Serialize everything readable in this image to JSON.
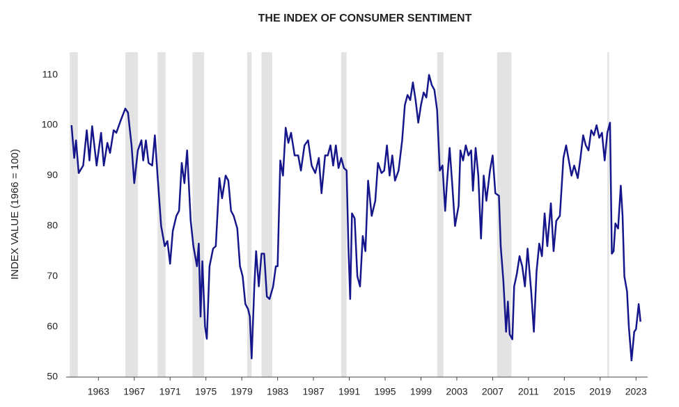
{
  "chart_data": {
    "type": "line",
    "title": "THE INDEX OF CONSUMER SENTIMENT",
    "y_label": "INDEX VALUE (1966 = 100)",
    "x": [
      1960.0,
      1960.3,
      1960.5,
      1960.8,
      1961.3,
      1961.7,
      1962.0,
      1962.3,
      1962.8,
      1963.3,
      1963.6,
      1964.0,
      1964.3,
      1964.7,
      1965.0,
      1965.5,
      1966.0,
      1966.3,
      1966.7,
      1967.0,
      1967.4,
      1967.8,
      1968.0,
      1968.3,
      1968.6,
      1969.0,
      1969.3,
      1969.6,
      1970.0,
      1970.4,
      1970.7,
      1971.0,
      1971.3,
      1971.7,
      1972.0,
      1972.3,
      1972.6,
      1972.9,
      1973.3,
      1973.6,
      1974.0,
      1974.2,
      1974.4,
      1974.6,
      1974.9,
      1975.1,
      1975.4,
      1975.8,
      1976.1,
      1976.5,
      1976.8,
      1977.2,
      1977.5,
      1977.8,
      1978.1,
      1978.5,
      1978.8,
      1979.1,
      1979.4,
      1979.7,
      1979.9,
      1980.1,
      1980.4,
      1980.6,
      1980.9,
      1981.2,
      1981.5,
      1981.8,
      1982.1,
      1982.5,
      1982.8,
      1983.0,
      1983.3,
      1983.6,
      1983.9,
      1984.2,
      1984.5,
      1984.9,
      1985.3,
      1985.6,
      1986.0,
      1986.4,
      1986.8,
      1987.2,
      1987.6,
      1987.9,
      1988.3,
      1988.6,
      1988.9,
      1989.2,
      1989.5,
      1989.8,
      1990.1,
      1990.4,
      1990.7,
      1990.9,
      1991.1,
      1991.3,
      1991.6,
      1991.9,
      1992.2,
      1992.5,
      1992.8,
      1993.1,
      1993.5,
      1993.9,
      1994.2,
      1994.6,
      1994.9,
      1995.2,
      1995.5,
      1995.8,
      1996.1,
      1996.5,
      1996.9,
      1997.2,
      1997.5,
      1997.8,
      1998.1,
      1998.4,
      1998.7,
      1999.0,
      1999.3,
      1999.6,
      1999.9,
      2000.2,
      2000.5,
      2000.8,
      2001.1,
      2001.4,
      2001.7,
      2001.9,
      2002.2,
      2002.5,
      2002.8,
      2003.2,
      2003.4,
      2003.7,
      2004.0,
      2004.3,
      2004.6,
      2004.8,
      2005.1,
      2005.4,
      2005.7,
      2006.0,
      2006.3,
      2006.7,
      2007.0,
      2007.3,
      2007.7,
      2007.9,
      2008.2,
      2008.5,
      2008.7,
      2008.9,
      2009.2,
      2009.4,
      2009.7,
      2010.0,
      2010.3,
      2010.6,
      2010.9,
      2011.3,
      2011.6,
      2011.9,
      2012.2,
      2012.5,
      2012.8,
      2013.1,
      2013.5,
      2013.8,
      2014.1,
      2014.5,
      2014.9,
      2015.2,
      2015.5,
      2015.8,
      2016.1,
      2016.5,
      2016.8,
      2017.1,
      2017.4,
      2017.7,
      2018.0,
      2018.3,
      2018.6,
      2018.9,
      2019.2,
      2019.5,
      2019.8,
      2020.1,
      2020.3,
      2020.5,
      2020.7,
      2021.0,
      2021.3,
      2021.5,
      2021.7,
      2022.0,
      2022.2,
      2022.5,
      2022.8,
      2023.0,
      2023.3,
      2023.5
    ],
    "series": [
      {
        "color": "#16168c",
        "values": [
          100,
          93.5,
          97,
          90.5,
          92,
          99,
          93,
          99.8,
          92,
          98.5,
          92,
          96.5,
          94.5,
          99,
          98.5,
          101,
          103.3,
          102.5,
          96,
          88.5,
          95,
          97,
          93,
          97,
          92.5,
          92,
          98,
          90,
          80,
          76,
          77,
          72.5,
          79,
          82,
          83,
          92.5,
          88.5,
          95,
          81,
          76,
          72,
          76.5,
          62,
          73,
          60,
          57.6,
          72,
          75.5,
          76,
          89.5,
          85.5,
          90,
          89,
          83,
          82,
          79.5,
          72,
          70,
          64.5,
          63.5,
          62,
          53.7,
          68,
          75,
          68,
          74.5,
          74.5,
          66,
          65.5,
          68,
          72,
          72,
          93,
          90,
          99.5,
          96.5,
          98.5,
          94,
          94,
          91,
          96,
          97,
          92,
          90.5,
          93.5,
          86.5,
          94,
          94,
          96,
          92,
          96,
          91.5,
          93.5,
          91.5,
          91,
          76,
          65.5,
          82.5,
          81.5,
          70,
          68,
          78,
          75,
          89,
          82,
          85,
          92.5,
          90.5,
          91,
          96,
          90,
          94,
          89,
          91,
          97,
          104,
          106,
          105,
          108.5,
          105,
          100.5,
          104,
          106.5,
          105.5,
          110,
          108,
          107,
          103,
          91,
          92,
          83,
          88.5,
          95.5,
          88,
          80,
          84,
          95,
          93,
          96,
          94,
          95,
          87,
          95.5,
          90,
          77.5,
          90,
          85,
          91,
          94,
          86.5,
          86,
          76,
          69,
          59,
          65,
          58.5,
          57.5,
          68,
          70.5,
          74,
          72,
          68,
          75.5,
          67,
          59,
          71,
          76.5,
          74,
          82.5,
          76,
          84.5,
          75,
          81,
          82,
          93.5,
          96,
          93,
          90,
          92,
          89.5,
          93.5,
          98,
          96,
          95,
          99,
          98,
          100,
          97.5,
          98.5,
          93,
          98.5,
          100.5,
          74.5,
          75,
          80.5,
          79.5,
          88,
          82,
          70,
          67,
          60,
          53.3,
          59,
          59.5,
          64.5,
          61
        ]
      }
    ],
    "recessions": [
      [
        1959.8,
        1960.7
      ],
      [
        1966.0,
        1967.4
      ],
      [
        1969.6,
        1970.5
      ],
      [
        1973.5,
        1974.8
      ],
      [
        1979.6,
        1980.1
      ],
      [
        1981.2,
        1982.4
      ],
      [
        1990.1,
        1990.7
      ],
      [
        2000.8,
        2001.5
      ],
      [
        2007.5,
        2009.1
      ],
      [
        2019.8,
        2020.0
      ]
    ],
    "recession_color": "#e3e3e3",
    "xlim": [
      1959.4,
      2024.3
    ],
    "xticks": [
      1963,
      1967,
      1971,
      1975,
      1979,
      1983,
      1987,
      1991,
      1995,
      1999,
      2003,
      2007,
      2011,
      2015,
      2019,
      2023
    ],
    "ylim": [
      50,
      114.5
    ],
    "yticks": [
      50,
      60,
      70,
      80,
      90,
      100,
      110
    ]
  }
}
